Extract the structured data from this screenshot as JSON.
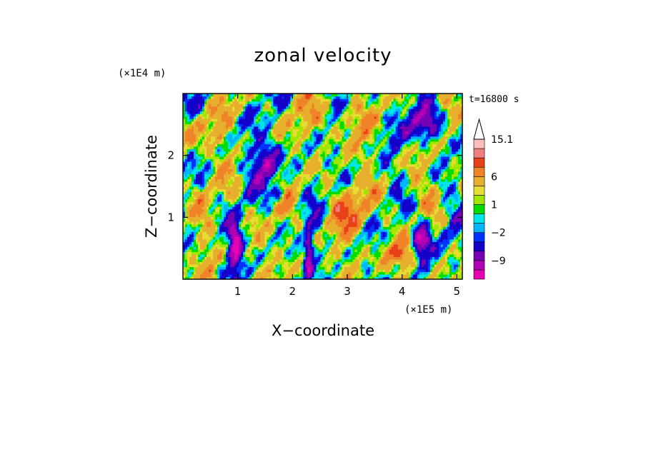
{
  "chart_data": {
    "type": "heatmap",
    "title": "zonal velocity",
    "xlabel": "X−coordinate",
    "ylabel": "Z−coordinate",
    "x_unit": "(×1E5 m)",
    "y_unit": "(×1E4 m)",
    "time_label": "t=16800 s",
    "xlim": [
      0,
      5.1
    ],
    "ylim": [
      0,
      3.0
    ],
    "x_ticks": [
      1,
      2,
      3,
      4,
      5
    ],
    "y_ticks": [
      1,
      2
    ],
    "colorbar": {
      "levels": [
        -15,
        -12,
        -9,
        -6,
        -3,
        -2,
        -1,
        0,
        1,
        2,
        3,
        6,
        9,
        12,
        15.1
      ],
      "colors": [
        "#e800b4",
        "#b400b4",
        "#7800b4",
        "#1400c8",
        "#0032ff",
        "#00b4ff",
        "#00e6e6",
        "#00dc00",
        "#a0e600",
        "#e6dc32",
        "#e6af2d",
        "#f08228",
        "#e84018",
        "#f08080",
        "#ffbebe"
      ],
      "labels": [
        {
          "value": 15.1,
          "text": "15.1"
        },
        {
          "value": 6,
          "text": "6"
        },
        {
          "value": 1,
          "text": "1"
        },
        {
          "value": -2,
          "text": "−2"
        },
        {
          "value": -9,
          "text": "−9"
        }
      ],
      "extend_max": true
    },
    "field_description": "turbulent zonal velocity field; positive (orange) and negative (blue) bands slanting across the domain, strong negative cores near x=0.9, 1.6, 2.3 and 4.3-4.5"
  }
}
